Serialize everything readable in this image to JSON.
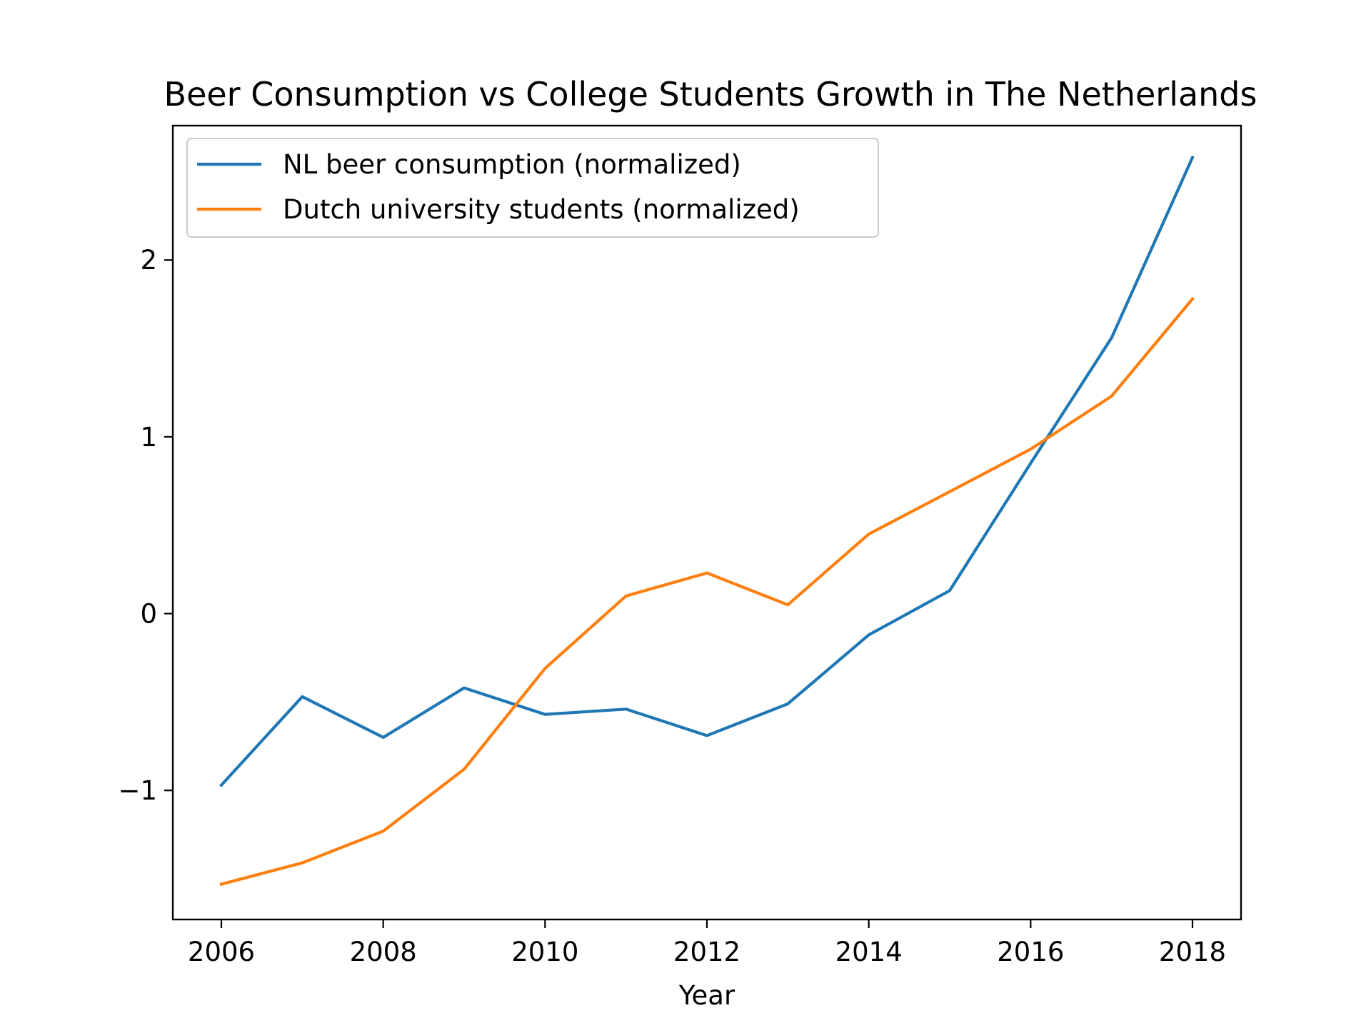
{
  "chart_data": {
    "type": "line",
    "title": "Beer Consumption vs College Students Growth in The Netherlands",
    "xlabel": "Year",
    "ylabel": "",
    "x": [
      2006,
      2007,
      2008,
      2009,
      2010,
      2011,
      2012,
      2013,
      2014,
      2015,
      2016,
      2017,
      2018
    ],
    "xticks": [
      2006,
      2008,
      2010,
      2012,
      2014,
      2016,
      2018
    ],
    "xtick_labels": [
      "2006",
      "2008",
      "2010",
      "2012",
      "2014",
      "2016",
      "2018"
    ],
    "yticks": [
      -1,
      0,
      1,
      2
    ],
    "ytick_labels": [
      "−1",
      "0",
      "1",
      "2"
    ],
    "xlim": [
      2005.4,
      2018.6
    ],
    "ylim": [
      -1.73,
      2.76
    ],
    "grid": false,
    "legend": "upper left",
    "series": [
      {
        "name": "NL beer consumption (normalized)",
        "color": "#1f77b4",
        "values": [
          -0.97,
          -0.47,
          -0.7,
          -0.42,
          -0.57,
          -0.54,
          -0.69,
          -0.51,
          -0.12,
          0.13,
          0.85,
          1.56,
          2.58
        ]
      },
      {
        "name": "Dutch university students (normalized)",
        "color": "#ff7f0e",
        "values": [
          -1.53,
          -1.41,
          -1.23,
          -0.88,
          -0.31,
          0.1,
          0.23,
          0.05,
          0.45,
          0.69,
          0.93,
          1.23,
          1.78
        ]
      }
    ]
  }
}
